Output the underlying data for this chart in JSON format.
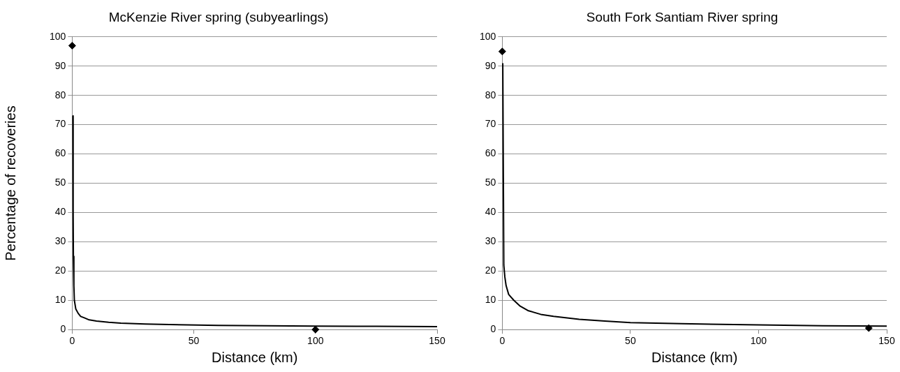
{
  "chart_data": [
    {
      "type": "line",
      "title": "McKenzie River spring (subyearlings)",
      "xlabel": "Distance (km)",
      "ylabel": "Percentage of recoveries",
      "xlim": [
        0,
        150
      ],
      "xticks": [
        0,
        50,
        100,
        150
      ],
      "ylim": [
        0,
        100
      ],
      "yticks": [
        0,
        10,
        20,
        30,
        40,
        50,
        60,
        70,
        80,
        90,
        100
      ],
      "grid": "y",
      "legend": false,
      "series": [
        {
          "type": "scatter",
          "marker": "diamond",
          "color": "#000000",
          "x": [
            0,
            100
          ],
          "values": [
            97,
            0
          ]
        },
        {
          "type": "line",
          "marker": "none",
          "color": "#000000",
          "x": [
            0.3,
            0.4,
            0.5,
            0.7,
            0.9,
            1.5,
            2.5,
            3.5,
            5,
            7,
            10,
            15,
            20,
            30,
            40,
            60,
            80,
            100,
            125,
            150
          ],
          "values": [
            73,
            40,
            25,
            15,
            10,
            7,
            5.5,
            4.5,
            4,
            3.3,
            2.9,
            2.5,
            2.2,
            1.9,
            1.7,
            1.4,
            1.3,
            1.2,
            1.1,
            1
          ]
        }
      ]
    },
    {
      "type": "line",
      "title": "South Fork Santiam River spring",
      "xlabel": "Distance (km)",
      "xlim": [
        0,
        150
      ],
      "xticks": [
        0,
        50,
        100,
        150
      ],
      "ylim": [
        0,
        100
      ],
      "yticks": [
        0,
        10,
        20,
        30,
        40,
        50,
        60,
        70,
        80,
        90,
        100
      ],
      "grid": "y",
      "legend": false,
      "series": [
        {
          "type": "scatter",
          "marker": "diamond",
          "color": "#000000",
          "x": [
            0,
            143
          ],
          "values": [
            95,
            0.5
          ]
        },
        {
          "type": "line",
          "marker": "none",
          "color": "#000000",
          "x": [
            0.2,
            0.6,
            1,
            1.5,
            2.5,
            4.5,
            7,
            10,
            15,
            20,
            30,
            40,
            50,
            70,
            100,
            125,
            150
          ],
          "values": [
            91,
            22,
            18,
            15,
            12,
            10,
            8,
            6.5,
            5.2,
            4.5,
            3.5,
            2.9,
            2.4,
            2,
            1.6,
            1.3,
            1.2
          ]
        }
      ]
    }
  ]
}
